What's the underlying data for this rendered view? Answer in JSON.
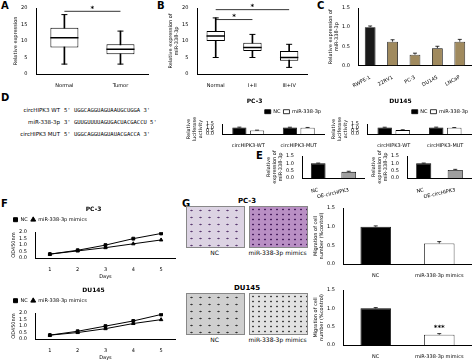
{
  "panel_labels": [
    "A",
    "B",
    "C",
    "D",
    "E",
    "F",
    "G"
  ],
  "sequences": [
    {
      "name": "circHIPK3 WT",
      "seq": "5' UGGCAGGUAGUAAUGCUGGA 3'"
    },
    {
      "name": "miR-338-3p",
      "seq": "3' GUUGUUUUAGUGACUACGACCU 5'"
    },
    {
      "name": "circHIPK3 MUT",
      "seq": "5' UGGCAGGUAGUAUACGACCA 3'"
    }
  ],
  "images": [
    {
      "title": "PC-3",
      "captions": [
        "NC",
        "miR-338-3p mimics"
      ]
    },
    {
      "title": "DU145",
      "captions": [
        "NC",
        "miR-338-3p mimics"
      ]
    }
  ],
  "chart_data": [
    {
      "type": "box",
      "categories": [
        "Normal",
        "Tumor"
      ],
      "ylabel": "Relative expression",
      "ylim": [
        0,
        20
      ],
      "yticks": [
        0,
        5,
        10,
        15,
        20
      ],
      "min": [
        3,
        3
      ],
      "q1": [
        8,
        6
      ],
      "median": [
        11,
        7.5
      ],
      "q3": [
        14,
        9
      ],
      "max": [
        18,
        13
      ],
      "annotations": [
        {
          "text": "*",
          "from": "Normal",
          "to": "Tumor",
          "y": 19
        }
      ]
    },
    {
      "type": "box",
      "categories": [
        "Normal",
        "I+II",
        "III+IV"
      ],
      "ylabel": "Relative expression of miR-338-3p",
      "ylim": [
        0,
        20
      ],
      "yticks": [
        0,
        5,
        10,
        15,
        20
      ],
      "min": [
        5,
        5,
        2
      ],
      "q1": [
        10,
        7,
        4
      ],
      "median": [
        11.5,
        8,
        5
      ],
      "q3": [
        13,
        9.5,
        7
      ],
      "max": [
        17,
        12,
        9
      ],
      "annotations": [
        {
          "text": "*",
          "from": "Normal",
          "to": "I+II",
          "y": 16.5
        },
        {
          "text": "*",
          "from": "Normal",
          "to": "III+IV",
          "y": 19.5
        }
      ]
    },
    {
      "type": "bar",
      "categories": [
        "RWPE-1",
        "22RV1",
        "PC-3",
        "DU145",
        "LNCaP"
      ],
      "values": [
        1.0,
        0.62,
        0.28,
        0.45,
        0.62
      ],
      "errors": [
        0.03,
        0.05,
        0.04,
        0.05,
        0.06
      ],
      "colors": [
        "#1a1a1a",
        "#a08a5e",
        "#a08a5e",
        "#a08a5e",
        "#a08a5e"
      ],
      "ylabel": "Relative expression of miR-338-3p",
      "ylim": [
        0,
        1.5
      ],
      "yticks": [
        {
          "value": 0,
          "label": "0.0"
        },
        0.5,
        {
          "value": 1,
          "label": "1.0"
        },
        1.5
      ]
    },
    {
      "type": "bar",
      "title": "PC-3",
      "categories": [
        "circHIPK3-WT",
        "circHIPK3-MUT"
      ],
      "series": [
        {
          "name": "NC",
          "color": "#000000",
          "values": [
            1.0,
            1.0
          ],
          "errors": [
            0.05,
            0.04
          ]
        },
        {
          "name": "miR-338-3p",
          "color": "#ffffff",
          "values": [
            0.55,
            0.95
          ],
          "errors": [
            0.04,
            0.05
          ]
        }
      ],
      "ylabel": "Relative luciferase activity",
      "ylim": [
        0,
        1.5
      ],
      "yticks": [
        {
          "value": 0,
          "label": "0.0"
        },
        0.5,
        {
          "value": 1,
          "label": "1.0"
        },
        1.5
      ],
      "legend": "top-right"
    },
    {
      "type": "bar",
      "title": "DU145",
      "categories": [
        "circHIPK3-WT",
        "circHIPK3-MUT"
      ],
      "series": [
        {
          "name": "NC",
          "color": "#000000",
          "values": [
            1.0,
            1.0
          ],
          "errors": [
            0.04,
            0.05
          ]
        },
        {
          "name": "miR-338-3p",
          "color": "#ffffff",
          "values": [
            0.6,
            0.95
          ],
          "errors": [
            0.05,
            0.04
          ]
        }
      ],
      "ylabel": "Relative luciferase activity",
      "ylim": [
        0,
        1.5
      ],
      "yticks": [
        {
          "value": 0,
          "label": "0.0"
        },
        0.5,
        {
          "value": 1,
          "label": "1.0"
        },
        1.5
      ],
      "legend": "top-right"
    },
    {
      "type": "bar",
      "categories": [
        "NC",
        "OE-circHIPK3"
      ],
      "values": [
        1.0,
        0.42
      ],
      "errors": [
        0.02,
        0.04
      ],
      "colors": [
        "#000000",
        "#9e9e9e"
      ],
      "ylabel": "Relative expression of miR-338-3p",
      "ylim": [
        0,
        1.5
      ],
      "yticks": [
        {
          "value": 0,
          "label": "0.0"
        },
        0.5,
        {
          "value": 1,
          "label": "1.0"
        },
        1.5
      ]
    },
    {
      "type": "bar",
      "categories": [
        "NC",
        "OE-circHIPK3"
      ],
      "values": [
        1.0,
        0.55
      ],
      "errors": [
        0.02,
        0.04
      ],
      "colors": [
        "#000000",
        "#9e9e9e"
      ],
      "ylabel": "Relative expression of miR-338-3p",
      "ylim": [
        0,
        1.5
      ],
      "yticks": [
        {
          "value": 0,
          "label": "0.0"
        },
        0.5,
        {
          "value": 1,
          "label": "1.0"
        },
        1.5
      ]
    },
    {
      "type": "line",
      "title": "PC-3",
      "categories": [
        "1",
        "2",
        "3",
        "4",
        "5"
      ],
      "xlabel": "Days",
      "ylabel": "OD450nm",
      "ylim": [
        0,
        2
      ],
      "yticks": [
        {
          "value": 0,
          "label": "0.0"
        },
        0.5,
        {
          "value": 1,
          "label": "1.0"
        },
        1.5,
        {
          "value": 2,
          "label": "2.0"
        }
      ],
      "series": [
        {
          "name": "NC",
          "color": "#000000",
          "marker": "square",
          "values": [
            0.3,
            0.6,
            1.0,
            1.5,
            1.9
          ]
        },
        {
          "name": "miR-338-3p mimics",
          "color": "#000000",
          "marker": "triangle",
          "values": [
            0.3,
            0.55,
            0.8,
            1.1,
            1.4
          ]
        }
      ],
      "legend": "top-left"
    },
    {
      "type": "line",
      "title": "DU145",
      "categories": [
        "1",
        "2",
        "3",
        "4",
        "5"
      ],
      "xlabel": "Days",
      "ylabel": "OD450nm",
      "ylim": [
        0,
        2
      ],
      "yticks": [
        {
          "value": 0,
          "label": "0.0"
        },
        0.5,
        {
          "value": 1,
          "label": "1.0"
        },
        1.5,
        {
          "value": 2,
          "label": "2.0"
        }
      ],
      "series": [
        {
          "name": "NC",
          "color": "#000000",
          "marker": "square",
          "values": [
            0.3,
            0.6,
            1.0,
            1.4,
            1.9
          ]
        },
        {
          "name": "miR-338-3p mimics",
          "color": "#000000",
          "marker": "triangle",
          "values": [
            0.3,
            0.5,
            0.8,
            1.2,
            1.5
          ]
        }
      ],
      "legend": "top-left"
    },
    {
      "type": "bar",
      "categories": [
        "NC",
        "miR-338-3p mimics"
      ],
      "values": [
        1.0,
        0.55
      ],
      "errors": [
        0.02,
        0.05
      ],
      "colors": [
        "#000000",
        "#ffffff"
      ],
      "ylabel": "Migration of cell number (%control)",
      "ylim": [
        0,
        1.5
      ],
      "yticks": [
        {
          "value": 0,
          "label": "0.0"
        },
        0.5,
        {
          "value": 1,
          "label": "1.0"
        },
        1.5
      ]
    },
    {
      "type": "bar",
      "categories": [
        "NC",
        "miR-338-3p mimics"
      ],
      "values": [
        1.0,
        0.28
      ],
      "errors": [
        0.02,
        0.03
      ],
      "colors": [
        "#000000",
        "#ffffff"
      ],
      "ylabel": "Migration of cell number (%control)",
      "ylim": [
        0,
        1.5
      ],
      "yticks": [
        {
          "value": 0,
          "label": "0.0"
        },
        0.5,
        {
          "value": 1,
          "label": "1.0"
        },
        1.5
      ],
      "annotations": [
        {
          "text": "***",
          "at": "miR-338-3p mimics",
          "y": 0.36
        }
      ]
    }
  ]
}
